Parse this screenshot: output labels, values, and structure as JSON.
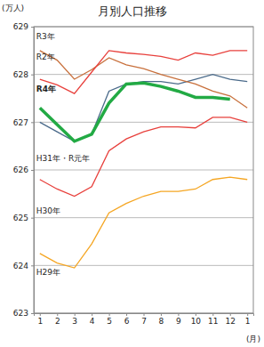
{
  "chart_data": {
    "type": "line",
    "title": "月別人口推移",
    "y_label": "(万人)",
    "x_label": "(月)",
    "categories": [
      "1",
      "2",
      "3",
      "4",
      "5",
      "6",
      "7",
      "8",
      "9",
      "10",
      "11",
      "12",
      "1"
    ],
    "series": [
      {
        "name": "R3年",
        "color": "#c8703c",
        "values": [
          628.5,
          628.3,
          627.9,
          628.1,
          628.35,
          628.2,
          628.12,
          628.0,
          627.9,
          627.8,
          627.65,
          627.55,
          627.3
        ]
      },
      {
        "name": "R2年",
        "color": "#e8403c",
        "values": [
          627.9,
          627.78,
          627.6,
          628.05,
          628.5,
          628.45,
          628.42,
          628.38,
          628.3,
          628.45,
          628.4,
          628.5,
          628.5
        ]
      },
      {
        "name": "R4年",
        "color": "#22aa44",
        "values": [
          627.3,
          626.95,
          626.6,
          626.75,
          627.4,
          627.8,
          627.82,
          627.75,
          627.65,
          627.52,
          627.52,
          627.48,
          null
        ]
      },
      {
        "name": "H31年・R元年",
        "color": "#4a6a8a",
        "values": [
          627.0,
          626.8,
          626.6,
          626.75,
          627.65,
          627.8,
          627.85,
          627.85,
          627.8,
          627.9,
          628.0,
          627.9,
          627.85
        ]
      },
      {
        "name": "H30年",
        "color": "#e8403c",
        "values": [
          625.8,
          625.6,
          625.45,
          625.65,
          626.4,
          626.65,
          626.8,
          626.9,
          626.9,
          626.88,
          627.1,
          627.1,
          627.0
        ]
      },
      {
        "name": "H29年",
        "color": "#f5a623",
        "values": [
          624.25,
          624.05,
          623.95,
          624.45,
          625.1,
          625.3,
          625.45,
          625.55,
          625.55,
          625.6,
          625.8,
          625.85,
          625.8
        ]
      }
    ],
    "ylim": [
      623,
      629
    ],
    "yticks": [
      623,
      624,
      625,
      626,
      627,
      628,
      629
    ],
    "grid": true
  }
}
